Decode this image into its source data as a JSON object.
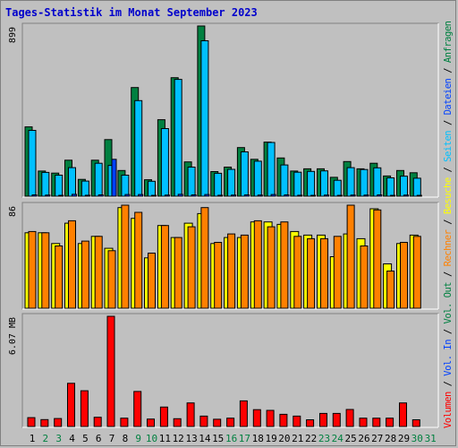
{
  "title": "Tages-Statistik im Monat September 2023",
  "colors": {
    "anfragen": "#008040",
    "dateien": "#00c0ff",
    "seiten": "#0040ff",
    "besuche": "#ffff00",
    "rechner": "#ff8000",
    "volumen": "#ff0000",
    "panel_bg": "#c0c0c0",
    "weekend_label": "#008040",
    "weekday_label": "#000000"
  },
  "chart_data": [
    {
      "type": "bar",
      "panel": "top",
      "ymax_label": "899",
      "ylim": [
        0,
        899
      ],
      "categories": [
        "1",
        "2",
        "3",
        "4",
        "5",
        "6",
        "7",
        "8",
        "9",
        "10",
        "11",
        "12",
        "13",
        "14",
        "15",
        "16",
        "17",
        "18",
        "19",
        "20",
        "21",
        "22",
        "23",
        "24",
        "25",
        "26",
        "27",
        "28",
        "29",
        "30",
        "31"
      ],
      "legend": [
        "Anfragen",
        "Dateien",
        "Seiten"
      ],
      "series": [
        {
          "name": "Anfragen",
          "values": [
            366,
            133,
            122,
            190,
            89,
            190,
            299,
            136,
            574,
            87,
            404,
            626,
            181,
            899,
            130,
            154,
            257,
            195,
            286,
            202,
            133,
            145,
            145,
            100,
            183,
            145,
            174,
            107,
            136,
            124,
            0
          ]
        },
        {
          "name": "Dateien",
          "values": [
            348,
            126,
            111,
            151,
            80,
            174,
            163,
            111,
            505,
            79,
            357,
            617,
            154,
            821,
            121,
            142,
            234,
            185,
            284,
            165,
            127,
            131,
            134,
            84,
            151,
            141,
            150,
            97,
            106,
            95,
            0
          ]
        },
        {
          "name": "Seiten",
          "values": [
            7,
            6,
            4,
            10,
            5,
            7,
            195,
            9,
            9,
            4,
            6,
            10,
            7,
            9,
            5,
            6,
            7,
            6,
            9,
            7,
            5,
            4,
            6,
            4,
            6,
            6,
            7,
            4,
            6,
            4,
            0
          ]
        }
      ]
    },
    {
      "type": "bar",
      "panel": "middle",
      "ymax_label": "86",
      "ylim": [
        0,
        86
      ],
      "categories": [
        "1",
        "2",
        "3",
        "4",
        "5",
        "6",
        "7",
        "8",
        "9",
        "10",
        "11",
        "12",
        "13",
        "14",
        "15",
        "16",
        "17",
        "18",
        "19",
        "20",
        "21",
        "22",
        "23",
        "24",
        "25",
        "26",
        "27",
        "28",
        "29",
        "30",
        "31"
      ],
      "legend": [
        "Besuche",
        "Rechner"
      ],
      "series": [
        {
          "name": "Besuche",
          "values": [
            63,
            63,
            54,
            71,
            54,
            60,
            50,
            84,
            75,
            42,
            69,
            59,
            71,
            79,
            54,
            59,
            59,
            72,
            72,
            70,
            64,
            61,
            61,
            43,
            62,
            58,
            83,
            37,
            54,
            61,
            0
          ]
        },
        {
          "name": "Rechner",
          "values": [
            64,
            63,
            52,
            73,
            56,
            60,
            48,
            86,
            80,
            46,
            69,
            59,
            68,
            84,
            55,
            62,
            61,
            73,
            68,
            72,
            60,
            58,
            58,
            60,
            86,
            52,
            82,
            31,
            55,
            60,
            0
          ]
        }
      ]
    },
    {
      "type": "bar",
      "panel": "bottom",
      "ymax_label": "6.07 MB",
      "ylim": [
        0,
        6.07
      ],
      "categories": [
        "1",
        "2",
        "3",
        "4",
        "5",
        "6",
        "7",
        "8",
        "9",
        "10",
        "11",
        "12",
        "13",
        "14",
        "15",
        "16",
        "17",
        "18",
        "19",
        "20",
        "21",
        "22",
        "23",
        "24",
        "25",
        "26",
        "27",
        "28",
        "29",
        "30",
        "31"
      ],
      "legend": [
        "Volumen"
      ],
      "series": [
        {
          "name": "Volumen",
          "values": [
            0.49,
            0.38,
            0.44,
            2.38,
            1.97,
            0.51,
            6.07,
            0.46,
            1.93,
            0.41,
            1.07,
            0.43,
            1.3,
            0.57,
            0.4,
            0.46,
            1.41,
            0.93,
            0.89,
            0.67,
            0.57,
            0.37,
            0.72,
            0.72,
            0.94,
            0.46,
            0.46,
            0.46,
            1.3,
            0.37,
            0
          ]
        }
      ]
    }
  ],
  "weekend_days": [
    2,
    3,
    9,
    10,
    16,
    17,
    23,
    24,
    30,
    31
  ]
}
